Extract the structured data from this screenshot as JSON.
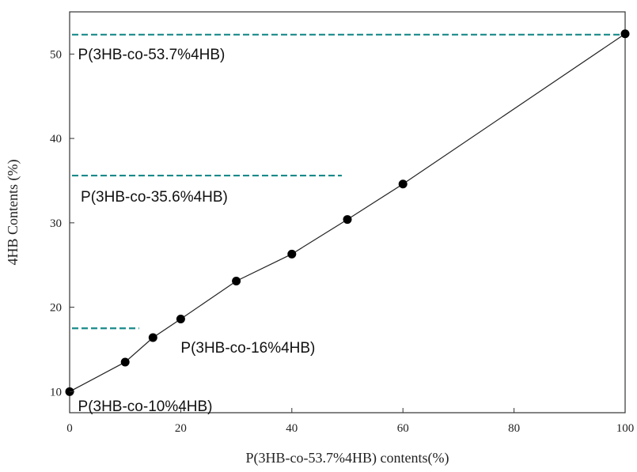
{
  "chart_data": {
    "type": "line",
    "xlabel": "P(3HB-co-53.7%4HB) contents(%)",
    "ylabel": "4HB Contents (%)",
    "xlim": [
      0,
      100
    ],
    "ylim": [
      7.5,
      55
    ],
    "x_ticks": [
      "0",
      "20",
      "40",
      "60",
      "80",
      "100"
    ],
    "y_ticks": [
      "10",
      "20",
      "30",
      "40",
      "50"
    ],
    "grid": false,
    "series": [
      {
        "marker": "circle",
        "color": "#000000",
        "points": [
          {
            "x": 0,
            "y": 10.0
          },
          {
            "x": 10,
            "y": 13.5
          },
          {
            "x": 15,
            "y": 16.4
          },
          {
            "x": 20,
            "y": 18.6
          },
          {
            "x": 30,
            "y": 23.1
          },
          {
            "x": 40,
            "y": 26.3
          },
          {
            "x": 50,
            "y": 30.4
          },
          {
            "x": 60,
            "y": 34.6
          },
          {
            "x": 100,
            "y": 52.4
          }
        ]
      }
    ],
    "reference_lines": [
      {
        "y": 52.3,
        "x_start": 0,
        "x_end": 100,
        "color": "#1a8a8a",
        "style": "dashed"
      },
      {
        "y": 35.6,
        "x_start": 0,
        "x_end": 49,
        "color": "#1a8a8a",
        "style": "dashed"
      },
      {
        "y": 17.5,
        "x_start": 0,
        "x_end": 12.5,
        "color": "#1a8a8a",
        "style": "dashed"
      }
    ],
    "annotations": [
      {
        "text": "P(3HB-co-53.7%4HB)",
        "x": 1.5,
        "y": 49.4
      },
      {
        "text": "P(3HB-co-35.6%4HB)",
        "x": 2,
        "y": 32.5
      },
      {
        "text": "P(3HB-co-16%4HB)",
        "x": 20,
        "y": 14.6
      },
      {
        "text": "P(3HB-co-10%4HB)",
        "x": 1.5,
        "y": 7.7
      }
    ]
  }
}
